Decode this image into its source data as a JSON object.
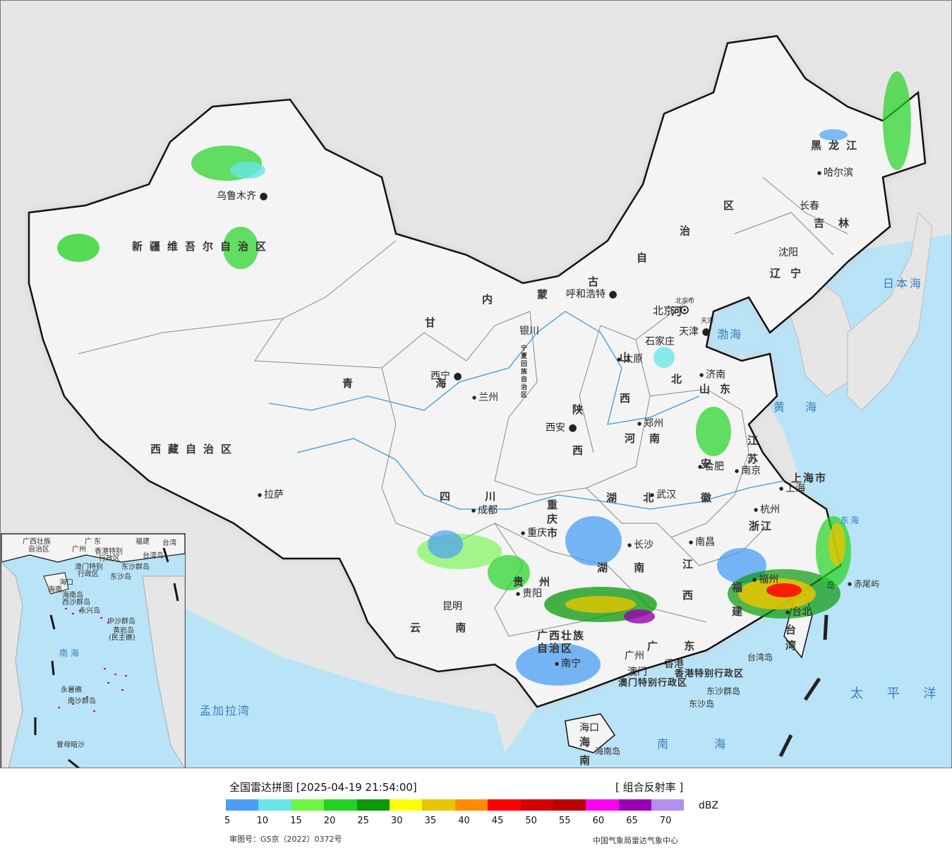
{
  "map": {
    "colors": {
      "ocean": "#b9e3f7",
      "land": "#f4f4f4",
      "foreign_land": "#e6e6e6",
      "border": "#111111",
      "province_border": "#888888",
      "river": "#3d9ad8"
    },
    "provinces": [
      {
        "id": "xinjiang",
        "text": "新疆维吾尔自治区"
      },
      {
        "id": "xizang",
        "text": "西藏自治区"
      },
      {
        "id": "qinghai",
        "text": "青 海"
      },
      {
        "id": "gansu",
        "text": "甘"
      },
      {
        "id": "neimenggu-nei",
        "text": "内"
      },
      {
        "id": "neimenggu-meng",
        "text": "蒙"
      },
      {
        "id": "neimenggu-gu",
        "text": "古"
      },
      {
        "id": "neimenggu-zi",
        "text": "自"
      },
      {
        "id": "neimenggu-zhi",
        "text": "治"
      },
      {
        "id": "neimenggu-qu",
        "text": "区"
      },
      {
        "id": "heilongjiang",
        "text": "黑龙江"
      },
      {
        "id": "jilin",
        "text": "吉林"
      },
      {
        "id": "liaoning",
        "text": "辽宁"
      },
      {
        "id": "hebei",
        "text": "河北"
      },
      {
        "id": "shanxi",
        "text": "山西"
      },
      {
        "id": "shaanxi",
        "text": "陕西"
      },
      {
        "id": "shandong",
        "text": "山东"
      },
      {
        "id": "henan",
        "text": "河南"
      },
      {
        "id": "jiangsu",
        "text": "江苏"
      },
      {
        "id": "anhui",
        "text": "安徽"
      },
      {
        "id": "shanghai",
        "text": "上海市"
      },
      {
        "id": "zhejiang",
        "text": "浙江"
      },
      {
        "id": "hubei",
        "text": "湖 北"
      },
      {
        "id": "hunan",
        "text": "湖 南"
      },
      {
        "id": "jiangxi",
        "text": "江西"
      },
      {
        "id": "fujian",
        "text": "福建"
      },
      {
        "id": "sichuan",
        "text": "四 川"
      },
      {
        "id": "chongqing",
        "text": "重庆市"
      },
      {
        "id": "guizhou",
        "text": "贵州"
      },
      {
        "id": "yunnan",
        "text": "云 南"
      },
      {
        "id": "guangxi",
        "text": "广西壮族自治区"
      },
      {
        "id": "guangdong",
        "text": "广 东"
      },
      {
        "id": "taiwan",
        "text": "台湾"
      },
      {
        "id": "hainan",
        "text": "海南"
      },
      {
        "id": "ningxia",
        "text": "宁夏回族自治区"
      },
      {
        "id": "hongkong",
        "text": "香港特别行政区"
      },
      {
        "id": "macau",
        "text": "澳门特别行政区"
      }
    ],
    "cities": [
      {
        "id": "urumqi",
        "text": "乌鲁木齐"
      },
      {
        "id": "lhasa",
        "text": "拉萨"
      },
      {
        "id": "xining",
        "text": "西宁"
      },
      {
        "id": "lanzhou",
        "text": "兰州"
      },
      {
        "id": "yinchuan",
        "text": "银川"
      },
      {
        "id": "hohhot",
        "text": "呼和浩特"
      },
      {
        "id": "beijing",
        "text": "北京"
      },
      {
        "id": "beijingshi",
        "text": "北京市"
      },
      {
        "id": "tianjin",
        "text": "天津"
      },
      {
        "id": "tianjinshi",
        "text": "天津"
      },
      {
        "id": "shijiazhuang",
        "text": "石家庄"
      },
      {
        "id": "taiyuan",
        "text": "太原"
      },
      {
        "id": "jinan",
        "text": "济南"
      },
      {
        "id": "zhengzhou",
        "text": "郑州"
      },
      {
        "id": "xian",
        "text": "西安"
      },
      {
        "id": "nanjing",
        "text": "南京"
      },
      {
        "id": "hefei",
        "text": "合肥"
      },
      {
        "id": "shanghaicity",
        "text": "上海"
      },
      {
        "id": "hangzhou",
        "text": "杭州"
      },
      {
        "id": "wuhan",
        "text": "武汉"
      },
      {
        "id": "changsha",
        "text": "长沙"
      },
      {
        "id": "nanchang",
        "text": "南昌"
      },
      {
        "id": "fuzhou",
        "text": "福州"
      },
      {
        "id": "chengdu",
        "text": "成都"
      },
      {
        "id": "chongqingcity",
        "text": "重庆"
      },
      {
        "id": "guiyang",
        "text": "贵阳"
      },
      {
        "id": "kunming",
        "text": "昆明"
      },
      {
        "id": "nanning",
        "text": "南宁"
      },
      {
        "id": "guangzhou",
        "text": "广州"
      },
      {
        "id": "hongkongcity",
        "text": "香港"
      },
      {
        "id": "macaucity",
        "text": "澳门"
      },
      {
        "id": "haikou",
        "text": "海口"
      },
      {
        "id": "taipei",
        "text": "台北"
      },
      {
        "id": "shenyang",
        "text": "沈阳"
      },
      {
        "id": "changchun",
        "text": "长春"
      },
      {
        "id": "harbin",
        "text": "哈尔滨"
      }
    ],
    "seas": [
      {
        "id": "bohai",
        "text": "渤海"
      },
      {
        "id": "huanghai",
        "text": "黄 海"
      },
      {
        "id": "riben",
        "text": "日本海"
      },
      {
        "id": "taipingyang",
        "text": "太 平 洋"
      },
      {
        "id": "nanhai",
        "text": "南 海"
      },
      {
        "id": "mengjialawan",
        "text": "孟加拉湾"
      },
      {
        "id": "donghai",
        "text": "东海"
      }
    ],
    "islands": [
      {
        "id": "chiweiyu",
        "text": "赤尾屿"
      },
      {
        "id": "taiwandao",
        "text": "台湾岛"
      },
      {
        "id": "dongshaqundao",
        "text": "东沙群岛"
      },
      {
        "id": "dongshadao",
        "text": "东沙岛"
      },
      {
        "id": "hainandao",
        "text": "海南岛"
      },
      {
        "id": "diaoyudao",
        "text": "岛"
      }
    ],
    "inset": {
      "labels": [
        {
          "id": "i-guangxi",
          "text": "广西壮族"
        },
        {
          "id": "i-zizhiqu",
          "text": "自治区"
        },
        {
          "id": "i-guangdong",
          "text": "广 东"
        },
        {
          "id": "i-fujian",
          "text": "福建"
        },
        {
          "id": "i-taiwan",
          "text": "台湾"
        },
        {
          "id": "i-guangzhou",
          "text": "广州"
        },
        {
          "id": "i-hongkong",
          "text": "香港特别"
        },
        {
          "id": "i-hongkong2",
          "text": "行政区"
        },
        {
          "id": "i-taiwandao",
          "text": "台湾岛"
        },
        {
          "id": "i-macau",
          "text": "澳门特别"
        },
        {
          "id": "i-macau2",
          "text": "行政区"
        },
        {
          "id": "i-dongsha",
          "text": "东沙群岛"
        },
        {
          "id": "i-dongshadao",
          "text": "东沙岛"
        },
        {
          "id": "i-haikou",
          "text": "海口"
        },
        {
          "id": "i-hainan",
          "text": "海南"
        },
        {
          "id": "i-hainandao",
          "text": "海南岛"
        },
        {
          "id": "i-xisha",
          "text": "西沙群岛"
        },
        {
          "id": "i-yongxing",
          "text": "永兴岛"
        },
        {
          "id": "i-zhongsha",
          "text": "中沙群岛"
        },
        {
          "id": "i-huangyan",
          "text": "黄岩岛"
        },
        {
          "id": "i-minzhu",
          "text": "(民主礁)"
        },
        {
          "id": "i-nanhai",
          "text": "南  海"
        },
        {
          "id": "i-yongshu",
          "text": "永暑礁"
        },
        {
          "id": "i-nansha",
          "text": "南沙群岛"
        },
        {
          "id": "i-zengmu",
          "text": "曾母暗沙"
        }
      ]
    }
  },
  "legend": {
    "title": "全国雷达拼图 [2025-04-19 21:54:00]",
    "product": "[ 组合反射率 ]",
    "unit": "dBZ",
    "ticks": [
      "5",
      "10",
      "15",
      "20",
      "25",
      "30",
      "35",
      "40",
      "45",
      "50",
      "55",
      "60",
      "65",
      "70"
    ],
    "colors": [
      "#4a9ff5",
      "#68e6ea",
      "#6cf542",
      "#22d322",
      "#0a9a0a",
      "#fbff00",
      "#e6c600",
      "#ff8c00",
      "#ff0000",
      "#d60000",
      "#bb0000",
      "#ff00f0",
      "#9a00b4",
      "#b38ff0"
    ],
    "approval": "审图号：GS京（2022）0372号",
    "agency": "中国气象局雷达气象中心"
  }
}
